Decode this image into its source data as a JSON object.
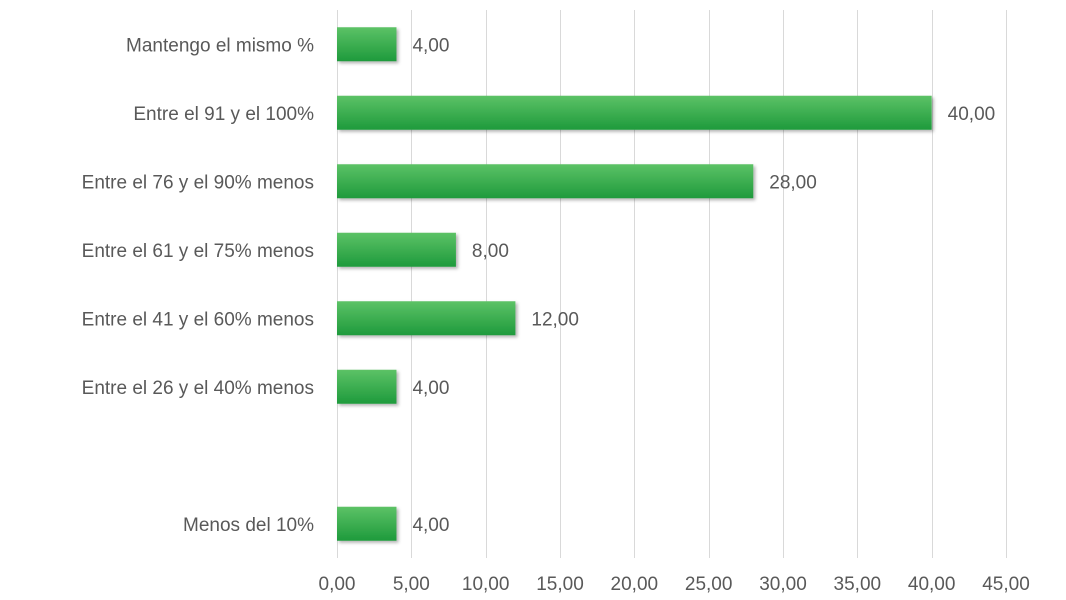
{
  "chart_data": {
    "type": "bar",
    "orientation": "horizontal",
    "title": "",
    "xlabel": "",
    "ylabel": "",
    "categories": [
      "Mantengo el mismo %",
      "Entre el 91 y el 100%",
      "Entre el 76 y el 90% menos",
      "Entre el 61 y el 75% menos",
      "Entre el 41 y el 60% menos",
      "Entre el 26 y el 40% menos",
      "",
      "Menos del 10%"
    ],
    "values": [
      4,
      40,
      28,
      8,
      12,
      4,
      null,
      4
    ],
    "data_labels": [
      "4,00",
      "40,00",
      "28,00",
      "8,00",
      "12,00",
      "4,00",
      "",
      "4,00"
    ],
    "xlim": [
      0,
      45
    ],
    "xticks": [
      0,
      5,
      10,
      15,
      20,
      25,
      30,
      35,
      40,
      45
    ],
    "xtick_labels": [
      "0,00",
      "5,00",
      "10,00",
      "15,00",
      "20,00",
      "25,00",
      "30,00",
      "35,00",
      "40,00",
      "45,00"
    ],
    "grid": true,
    "legend": "none",
    "colors": {
      "bar_top": "#5cc266",
      "bar_bottom": "#1e9a3c",
      "grid": "#d9d9d9",
      "text": "#595959"
    }
  }
}
